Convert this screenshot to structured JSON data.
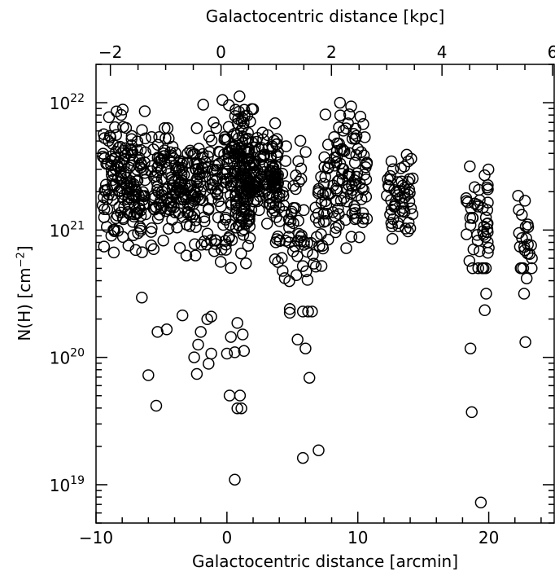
{
  "chart_data": {
    "type": "scatter",
    "xlabel": "Galactocentric distance [arcmin]",
    "x2label": "Galactocentric distance [kpc]",
    "ylabel_text": "N(H) [cm",
    "ylabel_unit_power": "−2",
    "ylabel_close": "]",
    "xlim": [
      -10,
      25
    ],
    "x2lim": [
      -2.26,
      6.03
    ],
    "ylim": [
      5e+18,
      2e+22
    ],
    "yscale": "log",
    "xticks": [
      -10,
      0,
      10,
      20
    ],
    "xtick_labels": [
      "−10",
      "0",
      "10",
      "20"
    ],
    "x2ticks": [
      -2,
      0,
      2,
      4,
      6
    ],
    "x2tick_labels": [
      "−2",
      "0",
      "2",
      "4",
      "6"
    ],
    "yticks": [
      1e+19,
      1e+20,
      1e+21,
      1e+22
    ],
    "ytick_labels": [
      [
        "10",
        "19"
      ],
      [
        "10",
        "20"
      ],
      [
        "10",
        "21"
      ],
      [
        "10",
        "22"
      ]
    ],
    "marker": "open-circle",
    "clusters": [
      {
        "x": [
          -9.5,
          -6.2
        ],
        "ylog": [
          20.8,
          22.15
        ],
        "count": 170,
        "center": 21.38,
        "spread": 0.24
      },
      {
        "x": [
          -5.8,
          -2.2
        ],
        "ylog": [
          20.8,
          21.8
        ],
        "count": 160,
        "center": 21.35,
        "spread": 0.22
      },
      {
        "x": [
          -2.2,
          1.8
        ],
        "ylog": [
          20.5,
          22.05
        ],
        "count": 170,
        "center": 21.35,
        "spread": 0.3
      },
      {
        "x": [
          0.5,
          4.0
        ],
        "ylog": [
          21.05,
          21.95
        ],
        "count": 190,
        "center": 21.45,
        "spread": 0.2
      },
      {
        "x": [
          3.5,
          7.5
        ],
        "ylog": [
          20.5,
          21.7
        ],
        "count": 90,
        "center": 21.1,
        "spread": 0.25
      },
      {
        "x": [
          7.5,
          10.8
        ],
        "ylog": [
          20.6,
          22.0
        ],
        "count": 110,
        "center": 21.45,
        "spread": 0.25
      },
      {
        "x": [
          12.2,
          14.2
        ],
        "ylog": [
          20.75,
          21.65
        ],
        "count": 55,
        "center": 21.25,
        "spread": 0.2
      },
      {
        "x": [
          18.2,
          20.0
        ],
        "ylog": [
          20.7,
          21.5
        ],
        "count": 45,
        "center": 21.1,
        "spread": 0.25
      },
      {
        "x": [
          22.2,
          23.3
        ],
        "ylog": [
          20.7,
          21.35
        ],
        "count": 22,
        "center": 20.95,
        "spread": 0.2
      }
    ],
    "points": [
      [
        -6.5,
        20.47
      ],
      [
        -3.4,
        20.33
      ],
      [
        -4.6,
        20.22
      ],
      [
        -5.3,
        20.2
      ],
      [
        -6.0,
        19.86
      ],
      [
        -5.4,
        19.62
      ],
      [
        -2.5,
        20.0
      ],
      [
        -2.2,
        20.1
      ],
      [
        -2.0,
        20.2
      ],
      [
        -1.5,
        20.3
      ],
      [
        -1.2,
        20.32
      ],
      [
        -2.3,
        19.87
      ],
      [
        -1.2,
        20.03
      ],
      [
        -1.4,
        19.95
      ],
      [
        0.0,
        20.03
      ],
      [
        0.6,
        20.04
      ],
      [
        0.8,
        20.27
      ],
      [
        0.3,
        20.16
      ],
      [
        1.2,
        20.18
      ],
      [
        1.3,
        20.05
      ],
      [
        0.2,
        19.7
      ],
      [
        1.0,
        19.7
      ],
      [
        0.8,
        19.6
      ],
      [
        1.1,
        19.6
      ],
      [
        0.6,
        19.04
      ],
      [
        4.8,
        20.38
      ],
      [
        4.8,
        20.35
      ],
      [
        5.4,
        20.14
      ],
      [
        5.8,
        20.36
      ],
      [
        6.2,
        20.36
      ],
      [
        6.5,
        20.36
      ],
      [
        6.0,
        20.07
      ],
      [
        6.3,
        19.84
      ],
      [
        5.8,
        19.21
      ],
      [
        7.0,
        19.27
      ],
      [
        18.6,
        20.07
      ],
      [
        18.7,
        19.57
      ],
      [
        19.4,
        18.86
      ],
      [
        19.5,
        20.7
      ],
      [
        19.8,
        20.5
      ],
      [
        19.7,
        20.37
      ],
      [
        22.8,
        20.12
      ],
      [
        22.7,
        20.5
      ],
      [
        22.9,
        20.62
      ]
    ]
  }
}
